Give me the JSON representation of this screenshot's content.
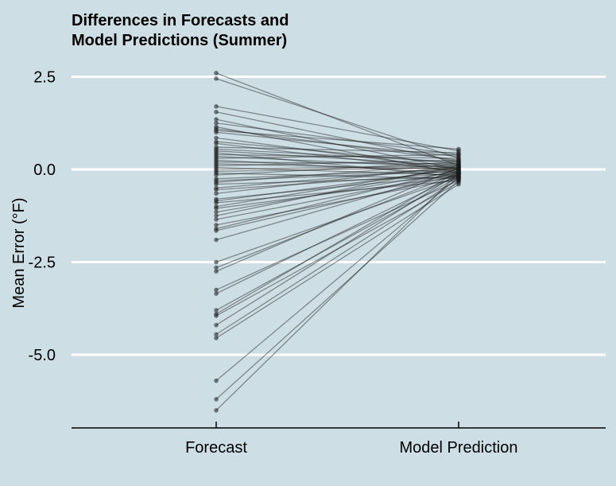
{
  "chart_data": {
    "type": "slope",
    "title": [
      "Differences in Forecasts and",
      "Model Predictions (Summer)"
    ],
    "ylabel": "Mean Error (°F)",
    "xlabel": "",
    "categories": [
      "Forecast",
      "Model Prediction"
    ],
    "y_ticks": [
      2.5,
      0.0,
      -2.5,
      -5.0
    ],
    "y_tick_labels": [
      "2.5",
      "0.0",
      "-2.5",
      "-5.0"
    ],
    "ylim": [
      -7.0,
      2.9
    ],
    "grid": "horizontal",
    "background_color": "#cddfe5",
    "grid_color": "#ffffff",
    "line_color": "#1a1a1a",
    "pairs": [
      [
        2.6,
        0.1
      ],
      [
        2.45,
        0.3
      ],
      [
        1.7,
        0.5
      ],
      [
        1.55,
        0.2
      ],
      [
        1.35,
        0.0
      ],
      [
        1.25,
        0.4
      ],
      [
        1.15,
        -0.1
      ],
      [
        1.1,
        0.25
      ],
      [
        1.05,
        0.55
      ],
      [
        1.0,
        0.35
      ],
      [
        0.85,
        0.0
      ],
      [
        0.75,
        0.15
      ],
      [
        0.7,
        -0.05
      ],
      [
        0.6,
        0.45
      ],
      [
        0.55,
        0.2
      ],
      [
        0.5,
        0.1
      ],
      [
        0.45,
        -0.2
      ],
      [
        0.4,
        0.3
      ],
      [
        0.35,
        0.05
      ],
      [
        0.3,
        0.4
      ],
      [
        0.25,
        -0.1
      ],
      [
        0.2,
        0.15
      ],
      [
        0.15,
        0.0
      ],
      [
        0.1,
        0.25
      ],
      [
        0.05,
        -0.15
      ],
      [
        0.0,
        0.1
      ],
      [
        -0.05,
        0.05
      ],
      [
        -0.1,
        -0.25
      ],
      [
        -0.15,
        0.2
      ],
      [
        -0.25,
        0.0
      ],
      [
        -0.3,
        -0.05
      ],
      [
        -0.35,
        0.15
      ],
      [
        -0.4,
        -0.2
      ],
      [
        -0.5,
        0.05
      ],
      [
        -0.55,
        -0.1
      ],
      [
        -0.65,
        0.1
      ],
      [
        -0.8,
        -0.15
      ],
      [
        -0.85,
        0.0
      ],
      [
        -0.9,
        -0.3
      ],
      [
        -1.0,
        0.05
      ],
      [
        -1.05,
        -0.2
      ],
      [
        -1.15,
        -0.05
      ],
      [
        -1.25,
        0.1
      ],
      [
        -1.35,
        -0.1
      ],
      [
        -1.5,
        -0.25
      ],
      [
        -1.6,
        0.0
      ],
      [
        -1.65,
        -0.15
      ],
      [
        -1.9,
        -0.05
      ],
      [
        -2.5,
        -0.2
      ],
      [
        -2.65,
        -0.1
      ],
      [
        -2.75,
        0.05
      ],
      [
        -3.25,
        -0.3
      ],
      [
        -3.35,
        -0.15
      ],
      [
        -3.8,
        -0.2
      ],
      [
        -3.9,
        -0.05
      ],
      [
        -3.95,
        -0.35
      ],
      [
        -4.2,
        -0.1
      ],
      [
        -4.45,
        -0.25
      ],
      [
        -4.55,
        -0.4
      ],
      [
        -5.7,
        -0.2
      ],
      [
        -6.2,
        -0.3
      ],
      [
        -6.5,
        -0.1
      ]
    ]
  }
}
